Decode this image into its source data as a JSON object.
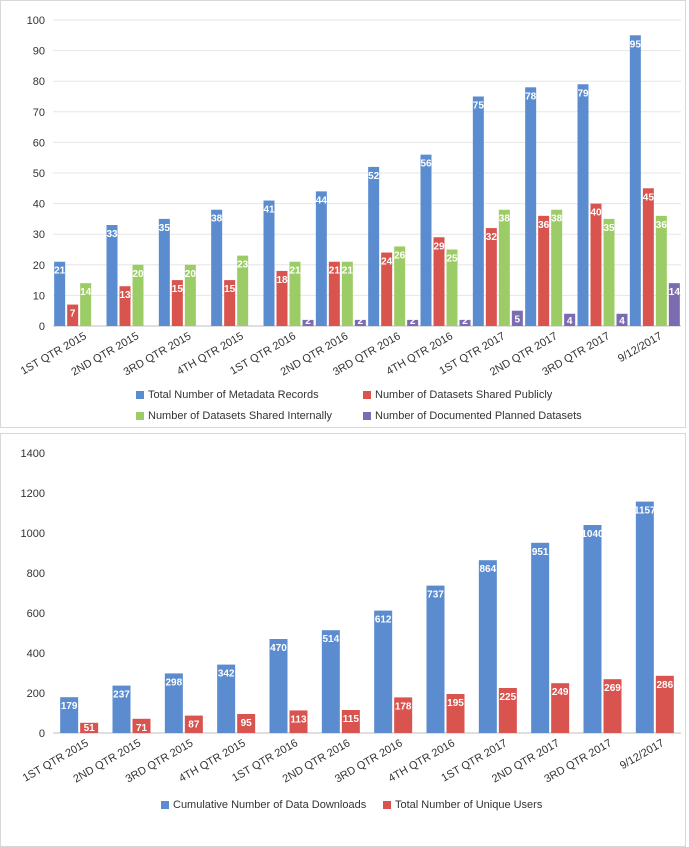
{
  "colors": {
    "blue": "#5b8ccf",
    "red": "#d9534f",
    "green": "#9ccc65",
    "purple": "#7b6bb0"
  },
  "chart_data": [
    {
      "type": "bar",
      "title": "",
      "xlabel": "",
      "ylabel": "",
      "ylim": [
        0,
        100
      ],
      "yticks": [
        0,
        10,
        20,
        30,
        40,
        50,
        60,
        70,
        80,
        90,
        100
      ],
      "grid": true,
      "legend": "bottom",
      "categories": [
        "1ST QTR 2015",
        "2ND QTR 2015",
        "3RD QTR 2015",
        "4TH QTR 2015",
        "1ST QTR 2016",
        "2ND QTR 2016",
        "3RD QTR 2016",
        "4TH QTR 2016",
        "1ST QTR 2017",
        "2ND QTR 2017",
        "3RD QTR 2017",
        "9/12/2017"
      ],
      "series": [
        {
          "name": "Total Number of Metadata Records",
          "color": "#5b8ccf",
          "values": [
            21,
            33,
            35,
            38,
            41,
            44,
            52,
            56,
            75,
            78,
            79,
            95
          ]
        },
        {
          "name": "Number of Datasets Shared Publicly",
          "color": "#d9534f",
          "values": [
            7,
            13,
            15,
            15,
            18,
            21,
            24,
            29,
            32,
            36,
            40,
            45
          ]
        },
        {
          "name": "Number of Datasets Shared Internally",
          "color": "#9ccc65",
          "values": [
            14,
            20,
            20,
            23,
            21,
            21,
            26,
            25,
            38,
            38,
            35,
            36
          ]
        },
        {
          "name": "Number of Documented Planned Datasets",
          "color": "#7b6bb0",
          "values": [
            null,
            null,
            null,
            null,
            2,
            2,
            2,
            2,
            5,
            4,
            4,
            14
          ]
        }
      ]
    },
    {
      "type": "bar",
      "title": "",
      "xlabel": "",
      "ylabel": "",
      "ylim": [
        0,
        1400
      ],
      "yticks": [
        0,
        200,
        400,
        600,
        800,
        1000,
        1200,
        1400
      ],
      "grid": false,
      "legend": "bottom",
      "categories": [
        "1ST QTR 2015",
        "2ND QTR 2015",
        "3RD QTR 2015",
        "4TH QTR 2015",
        "1ST QTR 2016",
        "2ND QTR 2016",
        "3RD QTR 2016",
        "4TH QTR 2016",
        "1ST QTR 2017",
        "2ND QTR 2017",
        "3RD QTR 2017",
        "9/12/2017"
      ],
      "series": [
        {
          "name": "Cumulative Number of Data Downloads",
          "color": "#5b8ccf",
          "values": [
            179,
            237,
            298,
            342,
            470,
            514,
            612,
            737,
            864,
            951,
            1040,
            1157
          ]
        },
        {
          "name": "Total Number of Unique Users",
          "color": "#d9534f",
          "values": [
            51,
            71,
            87,
            95,
            113,
            115,
            178,
            195,
            225,
            249,
            269,
            286
          ]
        }
      ]
    }
  ]
}
